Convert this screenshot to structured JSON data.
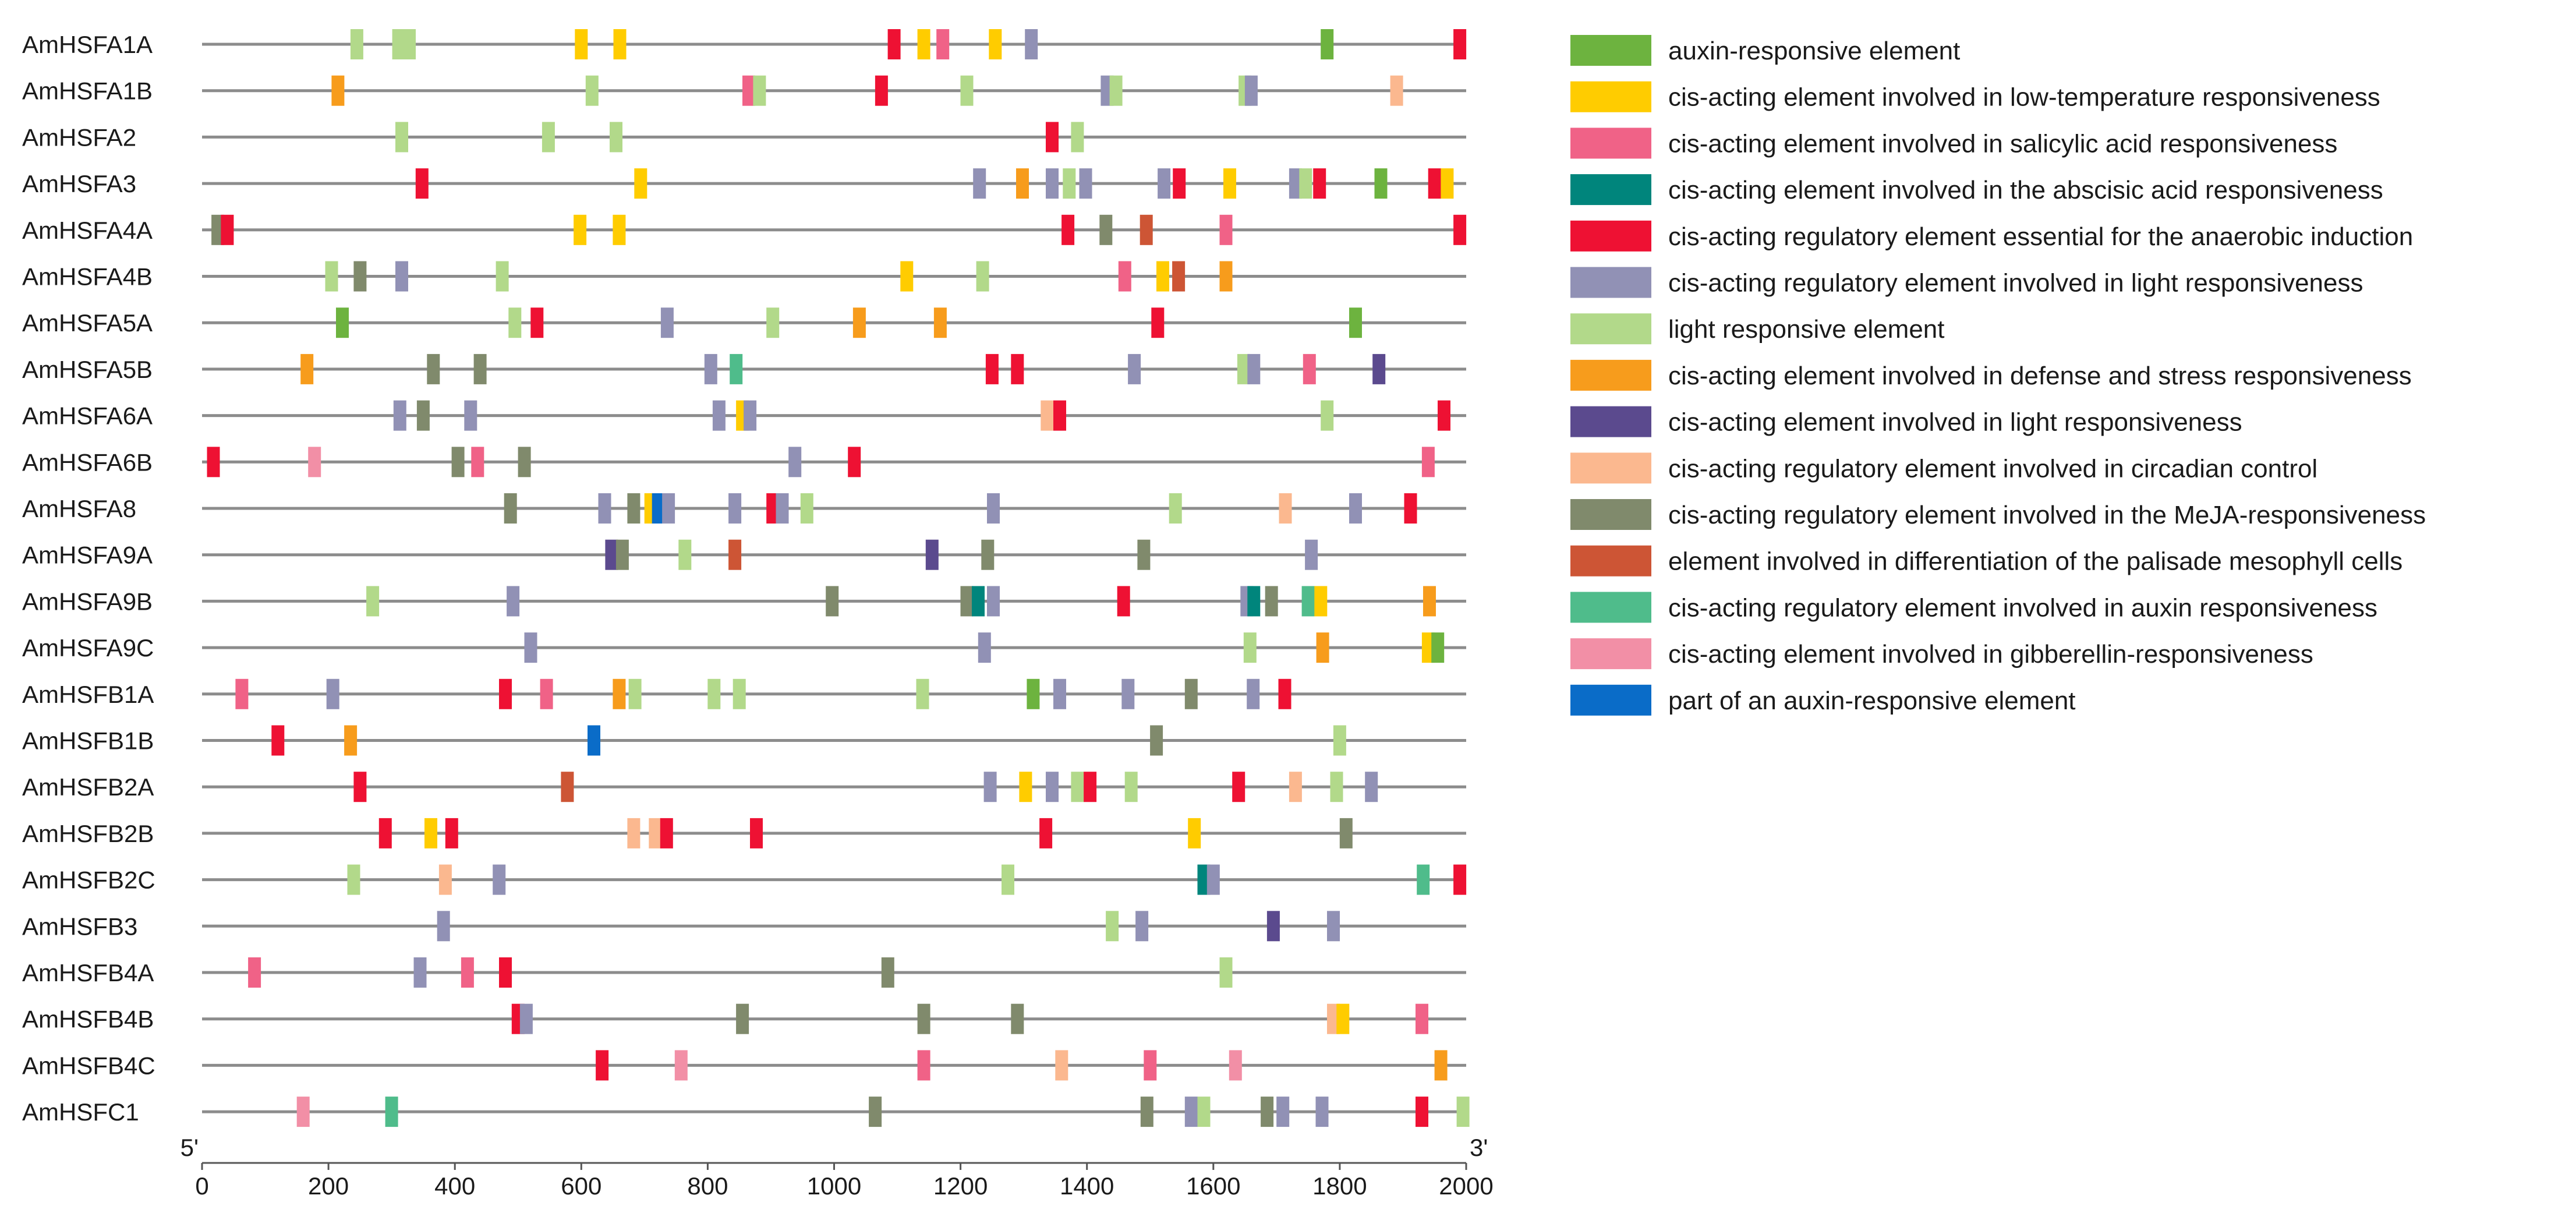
{
  "chart_data": {
    "type": "cis-element-map",
    "axis": {
      "min": 0,
      "max": 2000,
      "ticks": [
        0,
        200,
        400,
        600,
        800,
        1000,
        1200,
        1400,
        1600,
        1800,
        2000
      ],
      "start_label": "5'",
      "end_label": "3'"
    },
    "legend": [
      {
        "id": "aux",
        "label": "auxin-responsive element",
        "color": "#6db33f"
      },
      {
        "id": "lowtemp",
        "label": "cis-acting element involved in low-temperature responsiveness",
        "color": "#ffcc00"
      },
      {
        "id": "sa",
        "label": "cis-acting element involved in salicylic acid responsiveness",
        "color": "#f06287"
      },
      {
        "id": "aba",
        "label": "cis-acting element involved in the abscisic acid responsiveness",
        "color": "#00857c"
      },
      {
        "id": "anaer",
        "label": "cis-acting regulatory element essential for the anaerobic induction",
        "color": "#ee1133"
      },
      {
        "id": "lightreg",
        "label": "cis-acting regulatory element involved in light responsiveness",
        "color": "#9191b5"
      },
      {
        "id": "lightresp",
        "label": "light responsive element",
        "color": "#b2d98a"
      },
      {
        "id": "defense",
        "label": "cis-acting element involved in defense and stress responsiveness",
        "color": "#f79c1c"
      },
      {
        "id": "lightcis",
        "label": "cis-acting element involved in light responsiveness",
        "color": "#5b4a8e"
      },
      {
        "id": "circ",
        "label": "cis-acting regulatory element involved in circadian control",
        "color": "#fbb88f"
      },
      {
        "id": "meja",
        "label": "cis-acting regulatory element involved in the MeJA-responsiveness",
        "color": "#808a6c"
      },
      {
        "id": "palis",
        "label": "element involved in differentiation of the palisade mesophyll cells",
        "color": "#cd5535"
      },
      {
        "id": "auxreg",
        "label": "cis-acting regulatory element involved in auxin responsiveness",
        "color": "#4fbc8b"
      },
      {
        "id": "gib",
        "label": "cis-acting element involved in gibberellin-responsiveness",
        "color": "#f28fa6"
      },
      {
        "id": "partaux",
        "label": "part of an auxin-responsive element",
        "color": "#0a6cc8"
      }
    ],
    "genes": [
      {
        "name": "AmHSFA1A",
        "elements": [
          [
            245,
            "lightresp"
          ],
          [
            311,
            "lightresp"
          ],
          [
            328,
            "lightresp"
          ],
          [
            600,
            "lowtemp"
          ],
          [
            661,
            "lowtemp"
          ],
          [
            1095,
            "anaer"
          ],
          [
            1142,
            "lowtemp"
          ],
          [
            1172,
            "sa"
          ],
          [
            1255,
            "lowtemp"
          ],
          [
            1312,
            "lightreg"
          ],
          [
            1780,
            "aux"
          ],
          [
            1990,
            "anaer"
          ]
        ]
      },
      {
        "name": "AmHSFA1B",
        "elements": [
          [
            215,
            "defense"
          ],
          [
            617,
            "lightresp"
          ],
          [
            865,
            "sa"
          ],
          [
            882,
            "lightresp"
          ],
          [
            1075,
            "anaer"
          ],
          [
            1210,
            "lightresp"
          ],
          [
            1432,
            "lightreg"
          ],
          [
            1446,
            "lightresp"
          ],
          [
            1650,
            "lightresp"
          ],
          [
            1660,
            "lightreg"
          ],
          [
            1890,
            "circ"
          ]
        ]
      },
      {
        "name": "AmHSFA2",
        "elements": [
          [
            316,
            "lightresp"
          ],
          [
            548,
            "lightresp"
          ],
          [
            655,
            "lightresp"
          ],
          [
            1345,
            "anaer"
          ],
          [
            1385,
            "lightresp"
          ]
        ]
      },
      {
        "name": "AmHSFA3",
        "elements": [
          [
            348,
            "anaer"
          ],
          [
            694,
            "lowtemp"
          ],
          [
            1230,
            "lightreg"
          ],
          [
            1298,
            "defense"
          ],
          [
            1345,
            "lightreg"
          ],
          [
            1372,
            "lightresp"
          ],
          [
            1398,
            "lightreg"
          ],
          [
            1522,
            "lightreg"
          ],
          [
            1546,
            "anaer"
          ],
          [
            1626,
            "lowtemp"
          ],
          [
            1730,
            "lightreg"
          ],
          [
            1746,
            "lightresp"
          ],
          [
            1768,
            "anaer"
          ],
          [
            1865,
            "aux"
          ],
          [
            1950,
            "anaer"
          ],
          [
            1970,
            "lowtemp"
          ]
        ]
      },
      {
        "name": "AmHSFA4A",
        "elements": [
          [
            25,
            "meja"
          ],
          [
            40,
            "anaer"
          ],
          [
            598,
            "lowtemp"
          ],
          [
            660,
            "lowtemp"
          ],
          [
            1370,
            "anaer"
          ],
          [
            1430,
            "meja"
          ],
          [
            1494,
            "palis"
          ],
          [
            1620,
            "sa"
          ],
          [
            1990,
            "anaer"
          ]
        ]
      },
      {
        "name": "AmHSFA4B",
        "elements": [
          [
            205,
            "lightresp"
          ],
          [
            250,
            "meja"
          ],
          [
            316,
            "lightreg"
          ],
          [
            475,
            "lightresp"
          ],
          [
            1115,
            "lowtemp"
          ],
          [
            1235,
            "lightresp"
          ],
          [
            1460,
            "sa"
          ],
          [
            1520,
            "lowtemp"
          ],
          [
            1545,
            "palis"
          ],
          [
            1620,
            "defense"
          ]
        ]
      },
      {
        "name": "AmHSFA5A",
        "elements": [
          [
            222,
            "aux"
          ],
          [
            495,
            "lightresp"
          ],
          [
            530,
            "anaer"
          ],
          [
            736,
            "lightreg"
          ],
          [
            903,
            "lightresp"
          ],
          [
            1040,
            "defense"
          ],
          [
            1168,
            "defense"
          ],
          [
            1512,
            "anaer"
          ],
          [
            1825,
            "aux"
          ]
        ]
      },
      {
        "name": "AmHSFA5B",
        "elements": [
          [
            166,
            "defense"
          ],
          [
            366,
            "meja"
          ],
          [
            440,
            "meja"
          ],
          [
            805,
            "lightreg"
          ],
          [
            845,
            "auxreg"
          ],
          [
            1250,
            "anaer"
          ],
          [
            1290,
            "anaer"
          ],
          [
            1475,
            "lightreg"
          ],
          [
            1648,
            "lightresp"
          ],
          [
            1664,
            "lightreg"
          ],
          [
            1752,
            "sa"
          ],
          [
            1862,
            "lightcis"
          ]
        ]
      },
      {
        "name": "AmHSFA6A",
        "elements": [
          [
            313,
            "lightreg"
          ],
          [
            350,
            "meja"
          ],
          [
            425,
            "lightreg"
          ],
          [
            818,
            "lightreg"
          ],
          [
            855,
            "lowtemp"
          ],
          [
            867,
            "lightreg"
          ],
          [
            1337,
            "circ"
          ],
          [
            1357,
            "anaer"
          ],
          [
            1780,
            "lightresp"
          ],
          [
            1965,
            "anaer"
          ]
        ]
      },
      {
        "name": "AmHSFA6B",
        "elements": [
          [
            18,
            "anaer"
          ],
          [
            178,
            "gib"
          ],
          [
            405,
            "meja"
          ],
          [
            436,
            "sa"
          ],
          [
            510,
            "meja"
          ],
          [
            938,
            "lightreg"
          ],
          [
            1032,
            "anaer"
          ],
          [
            1940,
            "sa"
          ]
        ]
      },
      {
        "name": "AmHSFA8",
        "elements": [
          [
            488,
            "meja"
          ],
          [
            637,
            "lightreg"
          ],
          [
            683,
            "meja"
          ],
          [
            710,
            "lowtemp"
          ],
          [
            722,
            "partaux"
          ],
          [
            738,
            "lightreg"
          ],
          [
            843,
            "lightreg"
          ],
          [
            903,
            "anaer"
          ],
          [
            918,
            "lightreg"
          ],
          [
            957,
            "lightresp"
          ],
          [
            1252,
            "lightreg"
          ],
          [
            1540,
            "lightresp"
          ],
          [
            1714,
            "circ"
          ],
          [
            1825,
            "lightreg"
          ],
          [
            1912,
            "anaer"
          ]
        ]
      },
      {
        "name": "AmHSFA9A",
        "elements": [
          [
            648,
            "lightcis"
          ],
          [
            665,
            "meja"
          ],
          [
            764,
            "lightresp"
          ],
          [
            843,
            "palis"
          ],
          [
            1155,
            "lightcis"
          ],
          [
            1243,
            "meja"
          ],
          [
            1490,
            "meja"
          ],
          [
            1755,
            "lightreg"
          ]
        ]
      },
      {
        "name": "AmHSFA9B",
        "elements": [
          [
            270,
            "lightresp"
          ],
          [
            492,
            "lightreg"
          ],
          [
            997,
            "meja"
          ],
          [
            1210,
            "meja"
          ],
          [
            1228,
            "aba"
          ],
          [
            1252,
            "lightreg"
          ],
          [
            1458,
            "anaer"
          ],
          [
            1653,
            "lightreg"
          ],
          [
            1664,
            "aba"
          ],
          [
            1692,
            "meja"
          ],
          [
            1750,
            "auxreg"
          ],
          [
            1770,
            "lowtemp"
          ],
          [
            1942,
            "defense"
          ]
        ]
      },
      {
        "name": "AmHSFA9C",
        "elements": [
          [
            520,
            "lightreg"
          ],
          [
            1238,
            "lightreg"
          ],
          [
            1658,
            "lightresp"
          ],
          [
            1773,
            "defense"
          ],
          [
            1940,
            "lowtemp"
          ],
          [
            1955,
            "aux"
          ]
        ]
      },
      {
        "name": "AmHSFB1A",
        "elements": [
          [
            63,
            "sa"
          ],
          [
            207,
            "lightreg"
          ],
          [
            480,
            "anaer"
          ],
          [
            545,
            "sa"
          ],
          [
            660,
            "defense"
          ],
          [
            685,
            "lightresp"
          ],
          [
            810,
            "lightresp"
          ],
          [
            850,
            "lightresp"
          ],
          [
            1140,
            "lightresp"
          ],
          [
            1315,
            "aux"
          ],
          [
            1357,
            "lightreg"
          ],
          [
            1465,
            "lightreg"
          ],
          [
            1565,
            "meja"
          ],
          [
            1663,
            "lightreg"
          ],
          [
            1713,
            "anaer"
          ]
        ]
      },
      {
        "name": "AmHSFB1B",
        "elements": [
          [
            120,
            "anaer"
          ],
          [
            235,
            "defense"
          ],
          [
            620,
            "partaux"
          ],
          [
            1510,
            "meja"
          ],
          [
            1800,
            "lightresp"
          ]
        ]
      },
      {
        "name": "AmHSFB2A",
        "elements": [
          [
            250,
            "anaer"
          ],
          [
            578,
            "palis"
          ],
          [
            1247,
            "lightreg"
          ],
          [
            1303,
            "lowtemp"
          ],
          [
            1345,
            "lightreg"
          ],
          [
            1385,
            "lightresp"
          ],
          [
            1405,
            "anaer"
          ],
          [
            1470,
            "lightresp"
          ],
          [
            1640,
            "anaer"
          ],
          [
            1730,
            "circ"
          ],
          [
            1795,
            "lightresp"
          ],
          [
            1850,
            "lightreg"
          ]
        ]
      },
      {
        "name": "AmHSFB2B",
        "elements": [
          [
            290,
            "anaer"
          ],
          [
            362,
            "lowtemp"
          ],
          [
            395,
            "anaer"
          ],
          [
            683,
            "circ"
          ],
          [
            717,
            "circ"
          ],
          [
            735,
            "anaer"
          ],
          [
            877,
            "anaer"
          ],
          [
            1335,
            "anaer"
          ],
          [
            1570,
            "lowtemp"
          ],
          [
            1810,
            "meja"
          ]
        ]
      },
      {
        "name": "AmHSFB2C",
        "elements": [
          [
            240,
            "lightresp"
          ],
          [
            385,
            "circ"
          ],
          [
            470,
            "lightreg"
          ],
          [
            1275,
            "lightresp"
          ],
          [
            1585,
            "aba"
          ],
          [
            1600,
            "lightreg"
          ],
          [
            1932,
            "auxreg"
          ],
          [
            1990,
            "anaer"
          ]
        ]
      },
      {
        "name": "AmHSFB3",
        "elements": [
          [
            382,
            "lightreg"
          ],
          [
            1440,
            "lightresp"
          ],
          [
            1487,
            "lightreg"
          ],
          [
            1695,
            "lightcis"
          ],
          [
            1790,
            "lightreg"
          ]
        ]
      },
      {
        "name": "AmHSFB4A",
        "elements": [
          [
            83,
            "sa"
          ],
          [
            345,
            "lightreg"
          ],
          [
            420,
            "sa"
          ],
          [
            480,
            "anaer"
          ],
          [
            1085,
            "meja"
          ],
          [
            1620,
            "lightresp"
          ]
        ]
      },
      {
        "name": "AmHSFB4B",
        "elements": [
          [
            500,
            "anaer"
          ],
          [
            513,
            "lightreg"
          ],
          [
            855,
            "meja"
          ],
          [
            1142,
            "meja"
          ],
          [
            1290,
            "meja"
          ],
          [
            1790,
            "circ"
          ],
          [
            1805,
            "lowtemp"
          ],
          [
            1930,
            "sa"
          ]
        ]
      },
      {
        "name": "AmHSFB4C",
        "elements": [
          [
            633,
            "anaer"
          ],
          [
            758,
            "gib"
          ],
          [
            1142,
            "sa"
          ],
          [
            1360,
            "circ"
          ],
          [
            1500,
            "sa"
          ],
          [
            1635,
            "gib"
          ],
          [
            1960,
            "defense"
          ]
        ]
      },
      {
        "name": "AmHSFC1",
        "elements": [
          [
            160,
            "gib"
          ],
          [
            300,
            "auxreg"
          ],
          [
            1065,
            "meja"
          ],
          [
            1495,
            "meja"
          ],
          [
            1565,
            "lightreg"
          ],
          [
            1585,
            "lightresp"
          ],
          [
            1685,
            "meja"
          ],
          [
            1710,
            "lightreg"
          ],
          [
            1772,
            "lightreg"
          ],
          [
            1930,
            "anaer"
          ],
          [
            1995,
            "lightresp"
          ]
        ]
      }
    ]
  }
}
